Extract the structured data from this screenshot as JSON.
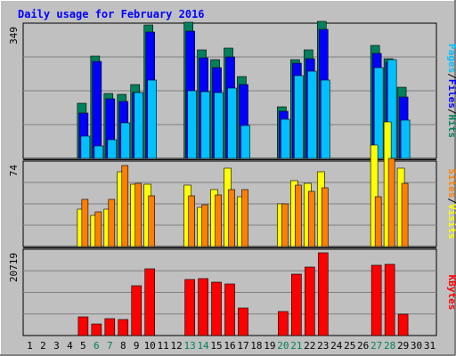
{
  "chart_data": {
    "type": "bar",
    "title": "Daily usage for February 2016",
    "days": [
      "1",
      "2",
      "3",
      "4",
      "5",
      "6",
      "7",
      "8",
      "9",
      "10",
      "11",
      "12",
      "13",
      "14",
      "15",
      "16",
      "17",
      "18",
      "19",
      "20",
      "21",
      "22",
      "23",
      "24",
      "25",
      "26",
      "27",
      "28",
      "29",
      "30",
      "31"
    ],
    "weekend_days": [
      6,
      7,
      13,
      14,
      20,
      21,
      27,
      28
    ],
    "panels": [
      {
        "id": "top",
        "ymax_label": "349",
        "ymax": 349,
        "right_label": [
          "Pages",
          "/",
          "Files",
          "/",
          "Hits"
        ],
        "series": [
          {
            "name": "Hits",
            "color": "#00805c",
            "values": [
              0,
              0,
              0,
              0,
              142,
              263,
              167,
              165,
              191,
              344,
              0,
              0,
              351,
              279,
              255,
              285,
              212,
              0,
              0,
              134,
              255,
              279,
              354,
              0,
              0,
              0,
              292,
              258,
              184,
              0,
              0
            ]
          },
          {
            "name": "Files",
            "color": "#0000ff",
            "values": [
              0,
              0,
              0,
              0,
              118,
              251,
              154,
              147,
              171,
              327,
              0,
              0,
              329,
              260,
              234,
              262,
              191,
              0,
              0,
              122,
              246,
              258,
              332,
              0,
              0,
              0,
              272,
              249,
              158,
              0,
              0
            ]
          },
          {
            "name": "Pages",
            "color": "#00c0ff",
            "values": [
              0,
              0,
              0,
              0,
              58,
              32,
              48,
              92,
              169,
              201,
              0,
              0,
              174,
              173,
              171,
              181,
              86,
              0,
              0,
              102,
              213,
              226,
              203,
              0,
              0,
              0,
              235,
              254,
              99,
              0,
              0
            ]
          }
        ]
      },
      {
        "id": "middle",
        "ymax_label": "74",
        "ymax": 74,
        "right_label": [
          "Sites",
          "/",
          "Visits"
        ],
        "series": [
          {
            "name": "Visits",
            "color": "#ffff00",
            "values": [
              0,
              0,
              0,
              0,
              32,
              27,
              32,
              65,
              54,
              54,
              0,
              0,
              53,
              34,
              49,
              68,
              43,
              0,
              0,
              37,
              57,
              55,
              65,
              0,
              0,
              0,
              88,
              108,
              68,
              0,
              0
            ]
          },
          {
            "name": "Sites",
            "color": "#ff8000",
            "values": [
              0,
              0,
              0,
              0,
              41,
              30,
              41,
              70,
              55,
              44,
              0,
              0,
              44,
              36,
              45,
              49,
              49,
              0,
              0,
              37,
              53,
              48,
              51,
              0,
              0,
              0,
              43,
              76,
              55,
              0,
              0
            ]
          }
        ]
      },
      {
        "id": "bottom",
        "ymax_label": "20719",
        "ymax": 20719,
        "right_label": [
          "KBytes"
        ],
        "series": [
          {
            "name": "KBytes",
            "color": "#ff0000",
            "values": [
              0,
              0,
              0,
              0,
              4397,
              2714,
              3963,
              3750,
              11980,
              16083,
              0,
              0,
              13395,
              13613,
              12843,
              12481,
              6518,
              0,
              0,
              5714,
              14831,
              16532,
              19886,
              0,
              0,
              0,
              16857,
              17052,
              5213,
              0,
              0
            ]
          }
        ]
      }
    ]
  },
  "colors": {
    "background": "#c0c0c0",
    "title": "#0000ff",
    "weekday_label": "#000000",
    "weekend_label": "#00805c",
    "panel_separator": "#000000",
    "hits": "#00805c",
    "files": "#0000ff",
    "pages": "#00c0ff",
    "visits": "#ffff00",
    "sites": "#ff8000",
    "kbytes": "#ff0000",
    "slash": "#000000"
  }
}
